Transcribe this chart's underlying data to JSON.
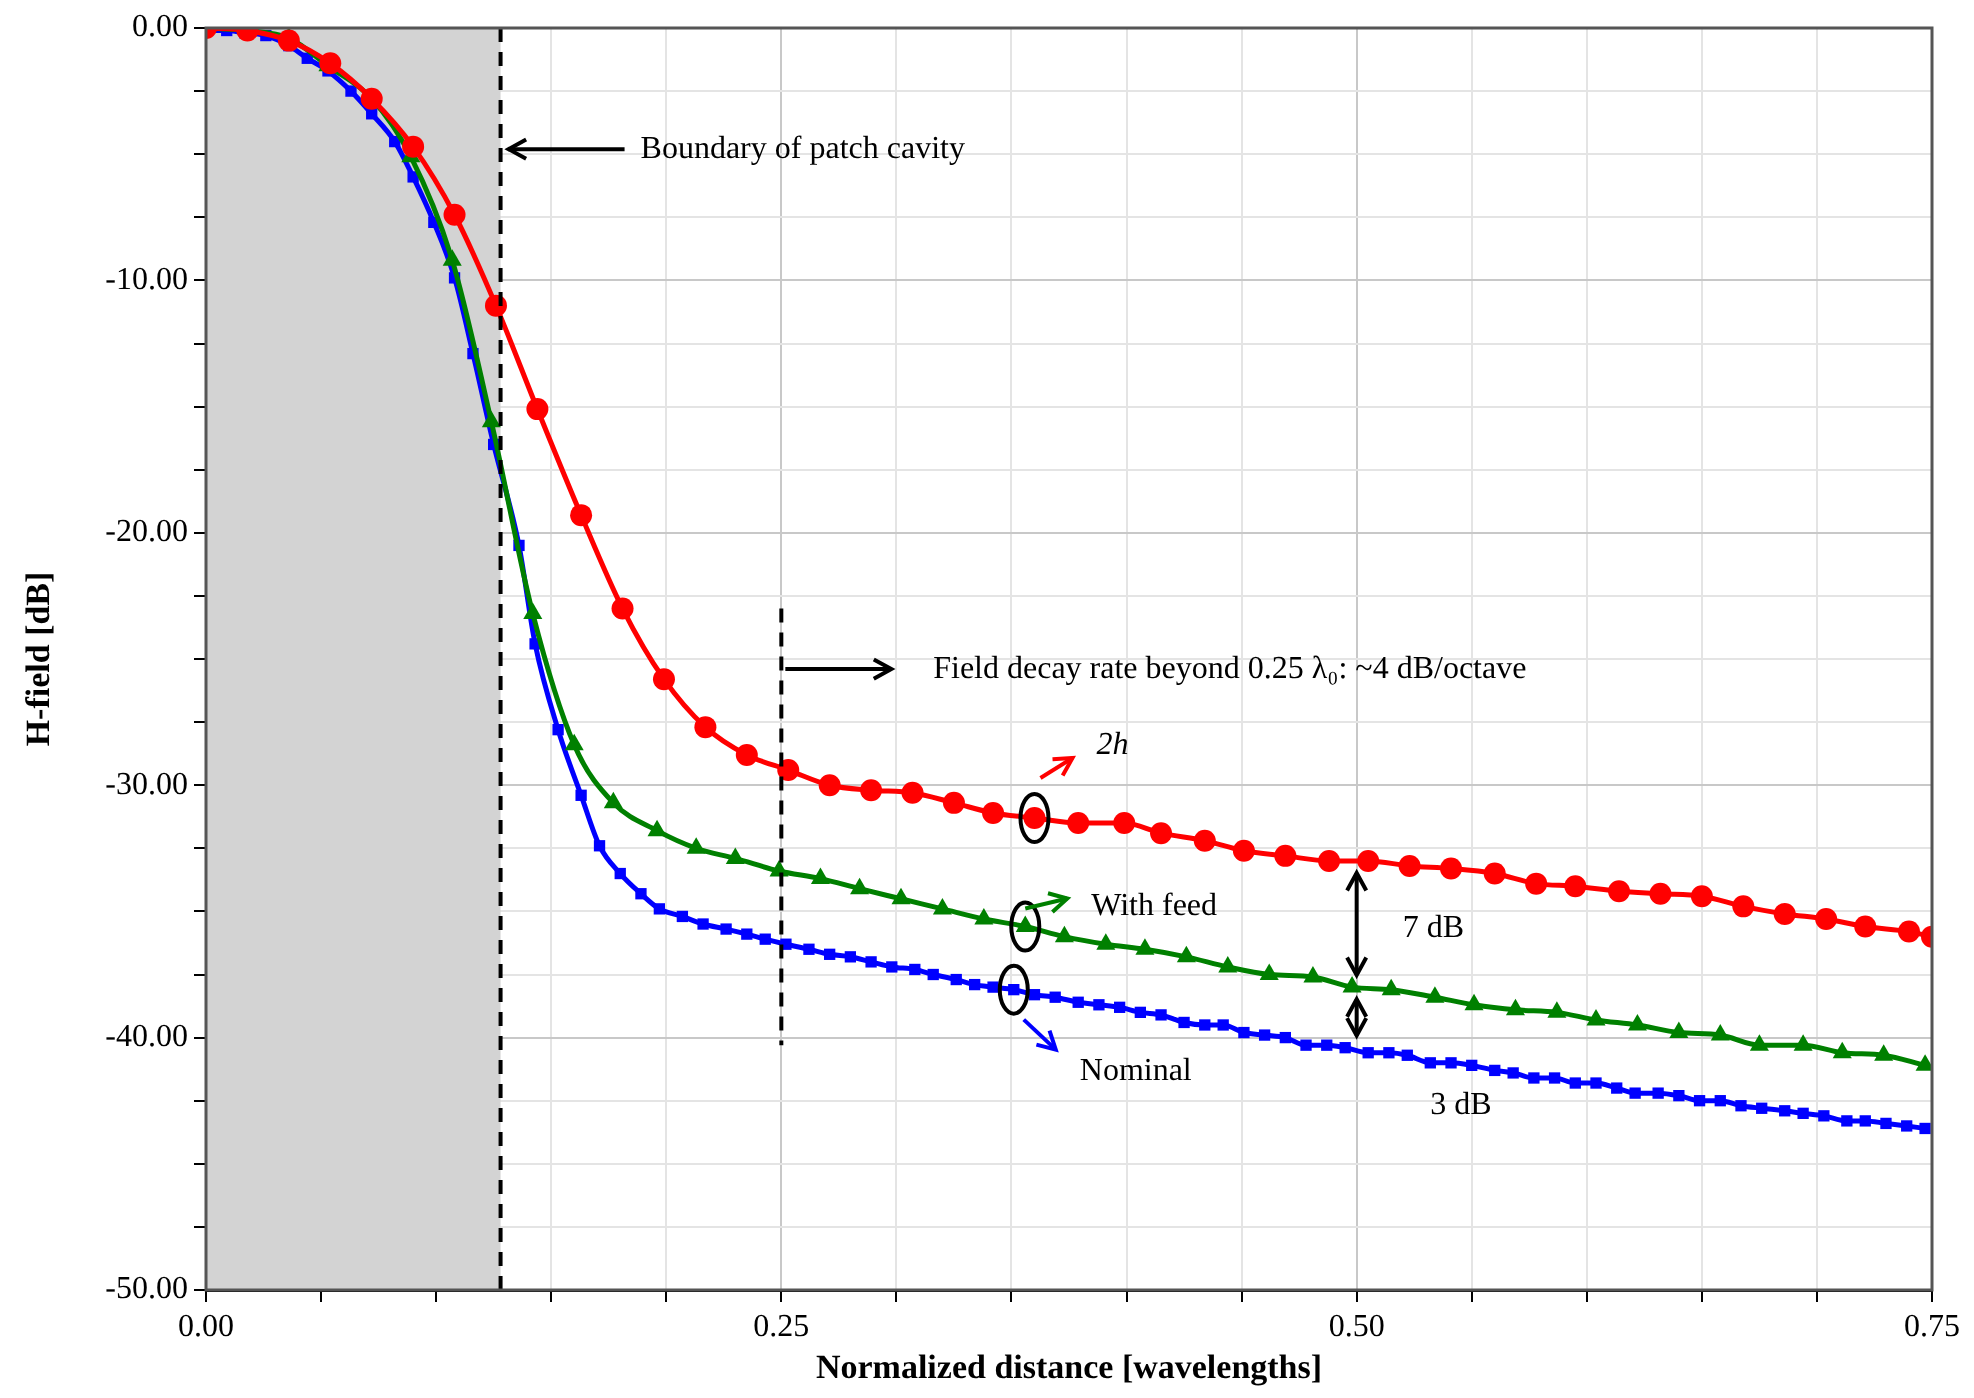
{
  "chart_data": {
    "type": "line",
    "xlabel": "Normalized distance [wavelengths]",
    "ylabel": "H-field [dB]",
    "xlim": [
      0,
      0.75
    ],
    "ylim": [
      -50,
      0
    ],
    "xticks": [
      {
        "value": 0,
        "label": "0.00"
      },
      {
        "value": 0.05,
        "label": null
      },
      {
        "value": 0.1,
        "label": null
      },
      {
        "value": 0.15,
        "label": null
      },
      {
        "value": 0.2,
        "label": null
      },
      {
        "value": 0.25,
        "label": "0.25"
      },
      {
        "value": 0.3,
        "label": null
      },
      {
        "value": 0.35,
        "label": null
      },
      {
        "value": 0.4,
        "label": null
      },
      {
        "value": 0.45,
        "label": null
      },
      {
        "value": 0.5,
        "label": "0.50"
      },
      {
        "value": 0.55,
        "label": null
      },
      {
        "value": 0.6,
        "label": null
      },
      {
        "value": 0.65,
        "label": null
      },
      {
        "value": 0.7,
        "label": null
      },
      {
        "value": 0.75,
        "label": "0.75"
      }
    ],
    "yticks": [
      {
        "value": -50,
        "label": "-50.00"
      },
      {
        "value": -47.5,
        "label": null
      },
      {
        "value": -45,
        "label": null
      },
      {
        "value": -42.5,
        "label": null
      },
      {
        "value": -40,
        "label": "-40.00"
      },
      {
        "value": -37.5,
        "label": null
      },
      {
        "value": -35,
        "label": null
      },
      {
        "value": -32.5,
        "label": null
      },
      {
        "value": -30,
        "label": "-30.00"
      },
      {
        "value": -27.5,
        "label": null
      },
      {
        "value": -25,
        "label": null
      },
      {
        "value": -22.5,
        "label": null
      },
      {
        "value": -20,
        "label": "-20.00"
      },
      {
        "value": -17.5,
        "label": null
      },
      {
        "value": -15,
        "label": null
      },
      {
        "value": -12.5,
        "label": null
      },
      {
        "value": -10,
        "label": "-10.00"
      },
      {
        "value": -7.5,
        "label": null
      },
      {
        "value": -5,
        "label": null
      },
      {
        "value": -2.5,
        "label": null
      },
      {
        "value": 0,
        "label": "0.00"
      }
    ],
    "grid": true,
    "legend": "center",
    "bands": [
      {
        "axis": "x",
        "from": 0,
        "to": 0.128,
        "color": "#d3d3d3"
      }
    ],
    "ref_lines": [
      {
        "axis": "x",
        "value": 0.128,
        "label": "Boundary of patch cavity",
        "color": "#000000",
        "line_style": "dashed"
      },
      {
        "axis": "x",
        "value": 0.25,
        "color": "#000000",
        "line_style": "dashed"
      }
    ],
    "annotations": [
      "Field decay rate beyond 0.25 λ₀: ~4 dB/octave",
      "7 dB",
      "3 dB"
    ],
    "series": [
      {
        "name": "2h",
        "color": "#ff0000",
        "marker": "circle",
        "x": [
          0,
          0.018,
          0.036,
          0.054,
          0.072,
          0.09,
          0.108,
          0.126,
          0.144,
          0.163,
          0.181,
          0.199,
          0.217,
          0.235,
          0.253,
          0.271,
          0.289,
          0.307,
          0.325,
          0.342,
          0.36,
          0.379,
          0.399,
          0.415,
          0.434,
          0.451,
          0.469,
          0.488,
          0.505,
          0.523,
          0.541,
          0.56,
          0.578,
          0.595,
          0.614,
          0.632,
          0.65,
          0.668,
          0.686,
          0.704,
          0.721,
          0.74,
          0.75
        ],
        "values": [
          0,
          -0.1,
          -0.5,
          -1.4,
          -2.8,
          -4.7,
          -7.4,
          -11.0,
          -15.1,
          -19.3,
          -23.0,
          -25.8,
          -27.7,
          -28.8,
          -29.4,
          -30.0,
          -30.2,
          -30.3,
          -30.7,
          -31.1,
          -31.3,
          -31.5,
          -31.5,
          -31.9,
          -32.2,
          -32.6,
          -32.8,
          -33.0,
          -33.0,
          -33.2,
          -33.3,
          -33.5,
          -33.9,
          -34.0,
          -34.2,
          -34.3,
          -34.4,
          -34.8,
          -35.1,
          -35.3,
          -35.6,
          -35.8,
          -36.0
        ]
      },
      {
        "name": "With feed",
        "color": "#008000",
        "marker": "triangle",
        "x": [
          0,
          0.018,
          0.036,
          0.053,
          0.072,
          0.089,
          0.107,
          0.124,
          0.142,
          0.16,
          0.177,
          0.196,
          0.213,
          0.23,
          0.249,
          0.267,
          0.284,
          0.302,
          0.32,
          0.338,
          0.356,
          0.373,
          0.391,
          0.408,
          0.426,
          0.444,
          0.462,
          0.481,
          0.498,
          0.515,
          0.534,
          0.551,
          0.569,
          0.587,
          0.604,
          0.622,
          0.64,
          0.658,
          0.675,
          0.694,
          0.711,
          0.729,
          0.747
        ],
        "values": [
          0,
          -0.1,
          -0.4,
          -1.5,
          -2.8,
          -5.1,
          -9.2,
          -15.6,
          -23.2,
          -28.4,
          -30.7,
          -31.8,
          -32.5,
          -32.9,
          -33.4,
          -33.7,
          -34.1,
          -34.5,
          -34.9,
          -35.3,
          -35.6,
          -36.0,
          -36.3,
          -36.5,
          -36.8,
          -37.2,
          -37.5,
          -37.6,
          -38.0,
          -38.1,
          -38.4,
          -38.7,
          -38.9,
          -39.0,
          -39.3,
          -39.5,
          -39.8,
          -39.9,
          -40.3,
          -40.3,
          -40.6,
          -40.7,
          -41.1
        ]
      },
      {
        "name": "Nominal",
        "color": "#0000ff",
        "marker": "square",
        "x": [
          0,
          0.009,
          0.017,
          0.026,
          0.036,
          0.044,
          0.053,
          0.063,
          0.072,
          0.082,
          0.09,
          0.099,
          0.108,
          0.116,
          0.125,
          0.136,
          0.143,
          0.153,
          0.163,
          0.171,
          0.18,
          0.189,
          0.197,
          0.207,
          0.216,
          0.226,
          0.235,
          0.243,
          0.252,
          0.262,
          0.271,
          0.28,
          0.289,
          0.298,
          0.308,
          0.316,
          0.326,
          0.334,
          0.342,
          0.351,
          0.36,
          0.369,
          0.379,
          0.388,
          0.397,
          0.406,
          0.415,
          0.425,
          0.434,
          0.442,
          0.451,
          0.46,
          0.469,
          0.478,
          0.487,
          0.495,
          0.505,
          0.514,
          0.522,
          0.532,
          0.541,
          0.55,
          0.56,
          0.568,
          0.577,
          0.586,
          0.595,
          0.604,
          0.613,
          0.621,
          0.631,
          0.64,
          0.649,
          0.658,
          0.667,
          0.676,
          0.686,
          0.694,
          0.703,
          0.713,
          0.721,
          0.73,
          0.739,
          0.747
        ],
        "values": [
          -0.1,
          -0.1,
          -0.2,
          -0.3,
          -0.7,
          -1.2,
          -1.7,
          -2.5,
          -3.4,
          -4.5,
          -5.9,
          -7.7,
          -9.9,
          -12.9,
          -16.5,
          -20.5,
          -24.4,
          -27.8,
          -30.4,
          -32.4,
          -33.5,
          -34.3,
          -34.9,
          -35.2,
          -35.5,
          -35.7,
          -35.9,
          -36.1,
          -36.3,
          -36.5,
          -36.7,
          -36.8,
          -37.0,
          -37.2,
          -37.3,
          -37.5,
          -37.7,
          -37.9,
          -38.0,
          -38.1,
          -38.3,
          -38.4,
          -38.6,
          -38.7,
          -38.8,
          -39.0,
          -39.1,
          -39.4,
          -39.5,
          -39.5,
          -39.8,
          -39.9,
          -40.0,
          -40.3,
          -40.3,
          -40.4,
          -40.6,
          -40.6,
          -40.7,
          -41.0,
          -41.0,
          -41.1,
          -41.3,
          -41.4,
          -41.6,
          -41.6,
          -41.8,
          -41.8,
          -42.0,
          -42.2,
          -42.2,
          -42.3,
          -42.5,
          -42.5,
          -42.7,
          -42.8,
          -42.9,
          -43.0,
          -43.1,
          -43.3,
          -43.3,
          -43.4,
          -43.5,
          -43.6
        ]
      }
    ]
  }
}
